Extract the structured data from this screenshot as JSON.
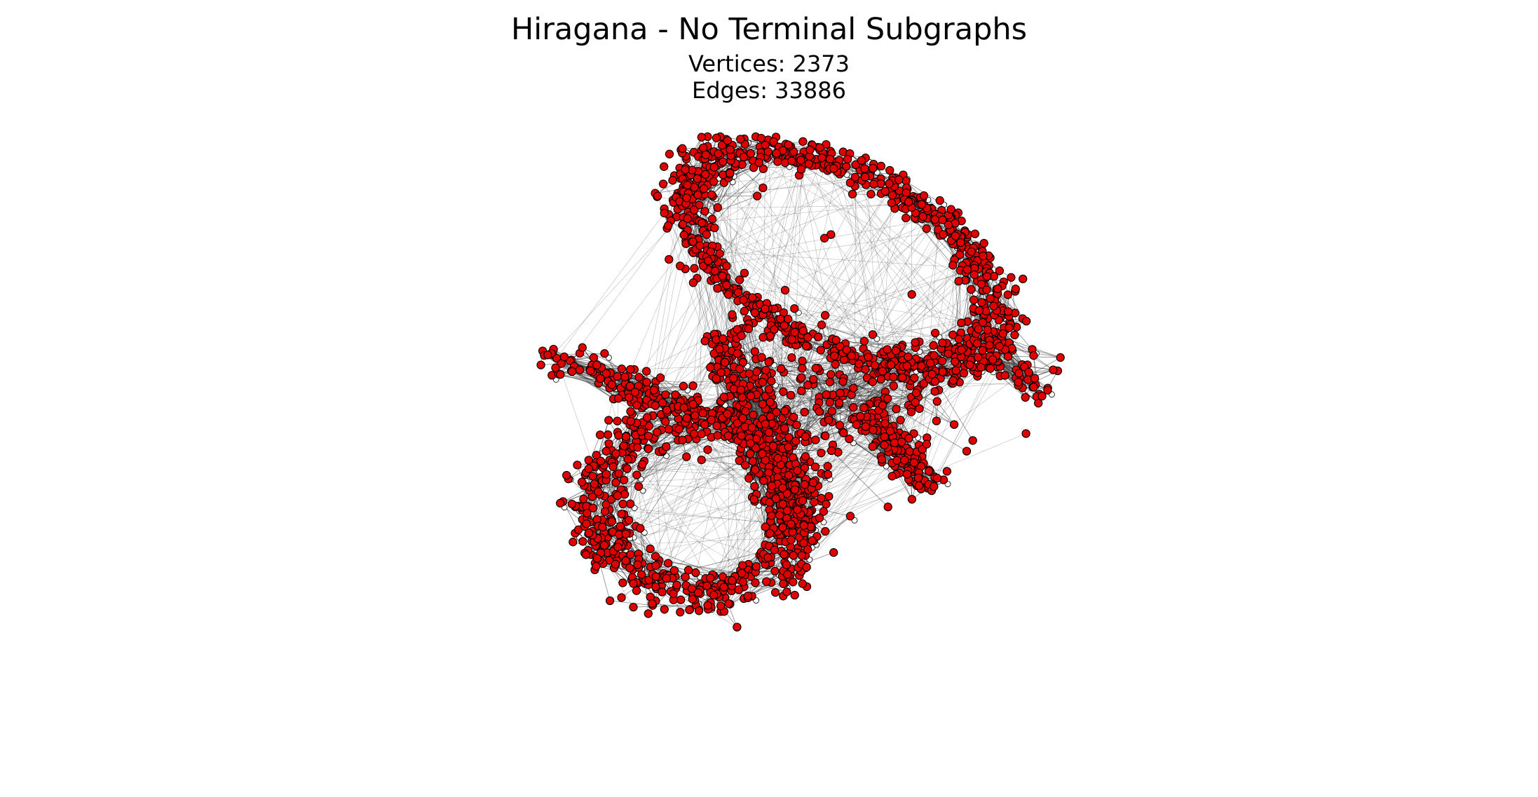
{
  "figure": {
    "title": "Hiragana - No Terminal Subgraphs",
    "vertices_label": "Vertices: 2373",
    "edges_label": " Edges: 33886"
  },
  "graph": {
    "vertex_count": 2373,
    "edge_count": 33886,
    "layout": "force-directed",
    "node_color": "#e00000",
    "node_outline_color": "#000000",
    "terminal_marker_color": "#ffffff",
    "edge_color": "#404040"
  }
}
